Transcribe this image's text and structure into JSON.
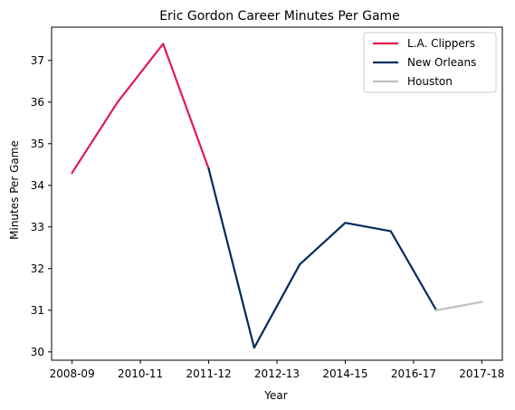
{
  "chart_data": {
    "type": "line",
    "title": "Eric Gordon Career Minutes Per Game",
    "xlabel": "Year",
    "ylabel": "Minutes Per Game",
    "x_tick_labels": [
      "2008-09",
      "2010-11",
      "2011-12",
      "2012-13",
      "2014-15",
      "2016-17",
      "2017-18"
    ],
    "xlim": [
      -0.45,
      9.45
    ],
    "ylim": [
      29.8,
      37.8
    ],
    "y_ticks": [
      30,
      31,
      32,
      33,
      34,
      35,
      36,
      37
    ],
    "grid": false,
    "legend_position": "top-right",
    "series": [
      {
        "name": "L.A. Clippers",
        "color": "#e31b4f",
        "x": [
          0,
          1,
          2,
          3
        ],
        "y": [
          34.3,
          36.0,
          37.4,
          34.4
        ]
      },
      {
        "name": "New Orleans",
        "color": "#002b5c",
        "x": [
          3,
          4,
          5,
          6,
          7,
          8
        ],
        "y": [
          34.4,
          30.1,
          32.1,
          33.1,
          32.9,
          31.0
        ]
      },
      {
        "name": "Houston",
        "color": "#c0c0c0",
        "x": [
          8,
          9
        ],
        "y": [
          31.0,
          31.2
        ]
      }
    ]
  }
}
